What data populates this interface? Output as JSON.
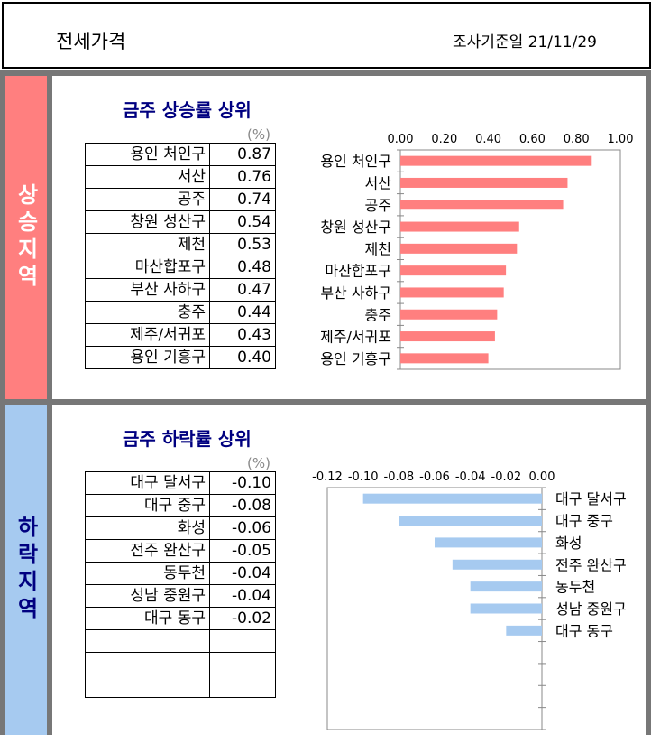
{
  "header": {
    "title": "전세가격",
    "date_label": "조사기준일  21/11/29"
  },
  "side": {
    "up": "상승지역",
    "down": "하락지역"
  },
  "up": {
    "title": "금주 상승률 상위",
    "unit": "(%)",
    "rows": [
      {
        "name": "용인 처인구",
        "value": "0.87"
      },
      {
        "name": "서산",
        "value": "0.76"
      },
      {
        "name": "공주",
        "value": "0.74"
      },
      {
        "name": "창원 성산구",
        "value": "0.54"
      },
      {
        "name": "제천",
        "value": "0.53"
      },
      {
        "name": "마산합포구",
        "value": "0.48"
      },
      {
        "name": "부산 사하구",
        "value": "0.47"
      },
      {
        "name": "충주",
        "value": "0.44"
      },
      {
        "name": "제주/서귀포",
        "value": "0.43"
      },
      {
        "name": "용인 기흥구",
        "value": "0.40"
      }
    ]
  },
  "down": {
    "title": "금주 하락률 상위",
    "unit": "(%)",
    "rows": [
      {
        "name": "대구 달서구",
        "value": "-0.10"
      },
      {
        "name": "대구 중구",
        "value": "-0.08"
      },
      {
        "name": "화성",
        "value": "-0.06"
      },
      {
        "name": "전주 완산구",
        "value": "-0.05"
      },
      {
        "name": "동두천",
        "value": "-0.04"
      },
      {
        "name": "성남 중원구",
        "value": "-0.04"
      },
      {
        "name": "대구 동구",
        "value": "-0.02"
      },
      {
        "name": "",
        "value": ""
      },
      {
        "name": "",
        "value": ""
      },
      {
        "name": "",
        "value": ""
      }
    ]
  },
  "chart_data": [
    {
      "type": "bar",
      "orientation": "horizontal",
      "categories": [
        "용인 처인구",
        "서산",
        "공주",
        "창원 성산구",
        "제천",
        "마산합포구",
        "부산 사하구",
        "충주",
        "제주/서귀포",
        "용인 기흥구"
      ],
      "values": [
        0.87,
        0.76,
        0.74,
        0.54,
        0.53,
        0.48,
        0.47,
        0.44,
        0.43,
        0.4
      ],
      "xlim": [
        0,
        1.0
      ],
      "ticks": [
        "0.00",
        "0.20",
        "0.40",
        "0.60",
        "0.80",
        "1.00"
      ],
      "tick_values": [
        0,
        0.2,
        0.4,
        0.6,
        0.8,
        1.0
      ],
      "color": "#ff7f7f"
    },
    {
      "type": "bar",
      "orientation": "horizontal",
      "categories": [
        "대구 달서구",
        "대구 중구",
        "화성",
        "전주 완산구",
        "동두천",
        "성남 중원구",
        "대구 동구"
      ],
      "values": [
        -0.1,
        -0.08,
        -0.06,
        -0.05,
        -0.04,
        -0.04,
        -0.02
      ],
      "xlim": [
        -0.12,
        0
      ],
      "ticks": [
        "-0.12",
        "-0.10",
        "-0.08",
        "-0.06",
        "-0.04",
        "-0.02",
        "0.00"
      ],
      "tick_values": [
        -0.12,
        -0.1,
        -0.08,
        -0.06,
        -0.04,
        -0.02,
        0
      ],
      "color": "#a6caf0"
    }
  ]
}
